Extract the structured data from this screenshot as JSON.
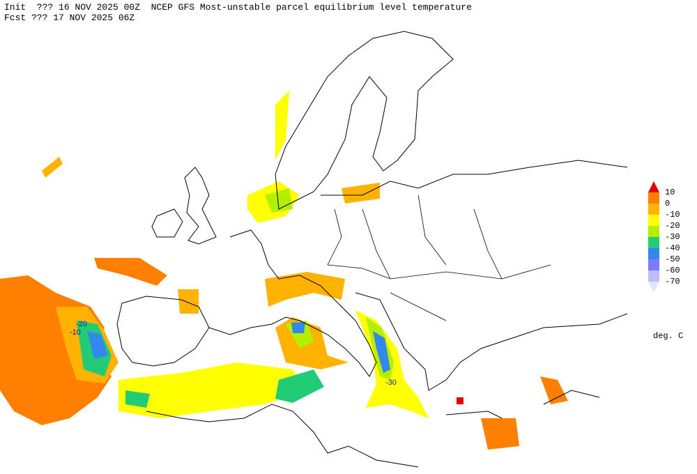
{
  "header": {
    "line1": "Init  ??? 16 NOV 2025 00Z  NCEP GFS Most-unstable parcel equilibrium level temperature",
    "line2": "Fcst ??? 17 NOV 2025 06Z"
  },
  "legend": {
    "levels": [
      10,
      0,
      -10,
      -20,
      -30,
      -40,
      -50,
      -60,
      -70
    ],
    "colors": [
      "#e80000",
      "#ff7f00",
      "#ffb300",
      "#ffff00",
      "#b4ee00",
      "#22cc77",
      "#3388ee",
      "#7b7bff",
      "#bcbcff",
      "#e4e4ff"
    ],
    "unit": "deg. C"
  },
  "contour_labels": [
    -20,
    -10,
    -30
  ]
}
